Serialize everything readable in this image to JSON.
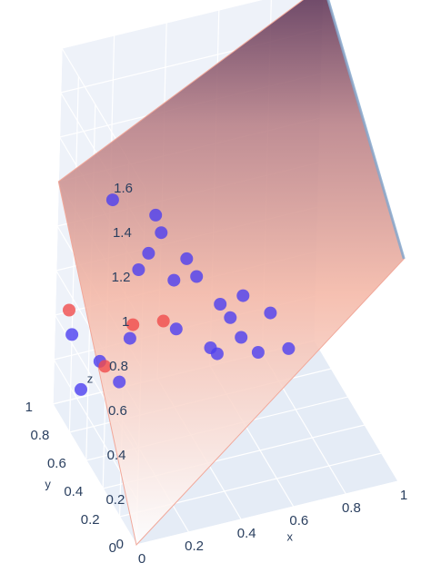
{
  "chart_data": {
    "type": "scatter3d",
    "axes": {
      "x": {
        "title": "x",
        "range": [
          0,
          1
        ],
        "ticks": [
          "0",
          "0.2",
          "0.4",
          "0.6",
          "0.8",
          "1"
        ]
      },
      "y": {
        "title": "y",
        "range": [
          0,
          1
        ],
        "ticks": [
          "0",
          "0.2",
          "0.4",
          "0.6",
          "0.8",
          "1"
        ]
      },
      "z": {
        "title": "z",
        "range": [
          0,
          1.6
        ],
        "ticks": [
          "0",
          "0.2",
          "0.4",
          "0.6",
          "0.8",
          "1",
          "1.2",
          "1.4",
          "1.6"
        ]
      }
    },
    "grid": true,
    "surface": {
      "description_values": "planar surface z ≈ x + y",
      "colors": [
        "#ffffff",
        "#f4b5a4",
        "#5a2f52"
      ]
    },
    "series": [
      {
        "color": "#4c3ff0",
        "points": [
          [
            0.05,
            0.95,
            0.33
          ],
          [
            0.1,
            0.98,
            0.05
          ],
          [
            0.15,
            0.92,
            0.2
          ],
          [
            0.22,
            0.9,
            0.1
          ],
          [
            0.25,
            0.88,
            0.3
          ],
          [
            0.3,
            0.95,
            0.55
          ],
          [
            0.32,
            0.9,
            0.65
          ],
          [
            0.35,
            0.92,
            0.8
          ],
          [
            0.38,
            0.94,
            0.7
          ],
          [
            0.4,
            0.8,
            0.35
          ],
          [
            0.42,
            0.9,
            0.5
          ],
          [
            0.45,
            0.85,
            0.62
          ],
          [
            0.48,
            0.82,
            0.55
          ],
          [
            0.5,
            0.7,
            0.3
          ],
          [
            0.52,
            0.68,
            0.28
          ],
          [
            0.55,
            0.75,
            0.45
          ],
          [
            0.58,
            0.72,
            0.4
          ],
          [
            0.6,
            0.65,
            0.35
          ],
          [
            0.62,
            0.7,
            0.5
          ],
          [
            0.65,
            0.6,
            0.3
          ],
          [
            0.7,
            0.62,
            0.45
          ],
          [
            0.75,
            0.55,
            0.32
          ],
          [
            0.2,
            0.97,
            0.88
          ]
        ]
      },
      {
        "color": "#f04b4b",
        "points": [
          [
            0.02,
            0.9,
            0.48
          ],
          [
            0.25,
            0.85,
            0.38
          ],
          [
            0.35,
            0.8,
            0.4
          ],
          [
            0.18,
            0.95,
            0.15
          ]
        ]
      }
    ]
  }
}
